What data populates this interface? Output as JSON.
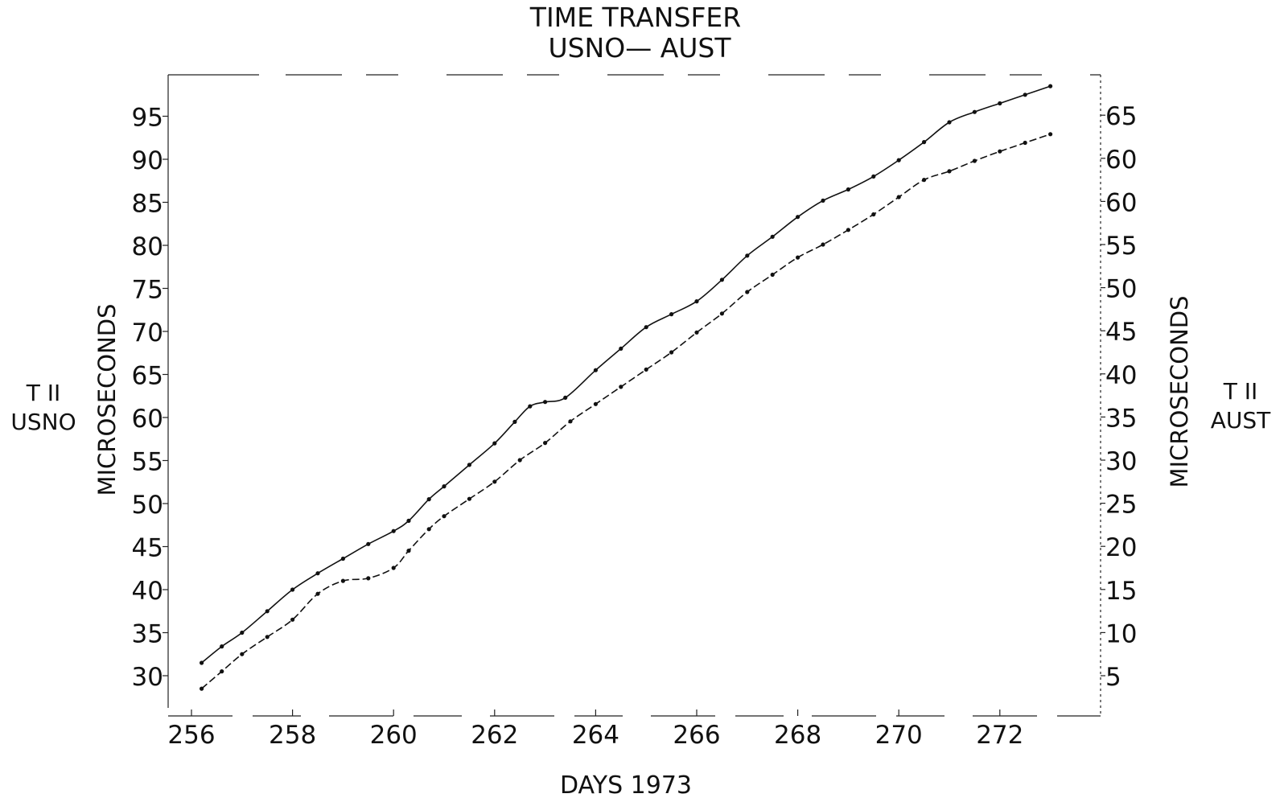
{
  "chart_data": {
    "type": "line",
    "title": "TIME TRANSFER",
    "subtitle": "USNO— AUST",
    "xlabel": "DAYS 1973",
    "left_axis": {
      "label": "MICROSECONDS",
      "side_label": [
        "T II",
        "USNO"
      ],
      "ylim": [
        25,
        100
      ],
      "ticks": [
        "30",
        "35",
        "40",
        "45",
        "50",
        "55",
        "60",
        "65",
        "70",
        "75",
        "80",
        "85",
        "90",
        "95"
      ]
    },
    "right_axis": {
      "label": "MICROSECONDS",
      "side_label": [
        "T II",
        "AUST"
      ],
      "ylim": [
        0,
        70
      ],
      "ticks": [
        "5",
        "10",
        "15",
        "20",
        "25",
        "30",
        "35",
        "40",
        "45",
        "50",
        "55",
        "60",
        "60",
        "65"
      ]
    },
    "xlim": [
      255.7,
      273.4
    ],
    "x_ticks": [
      "256",
      "258",
      "260",
      "262",
      "264",
      "266",
      "268",
      "270",
      "272"
    ],
    "grid": false,
    "series": [
      {
        "axis": "left",
        "style": "solid",
        "x": [
          256.2,
          256.6,
          257.0,
          257.5,
          258.0,
          258.5,
          259.0,
          259.5,
          260.0,
          260.3,
          260.7,
          261.0,
          261.5,
          262.0,
          262.4,
          262.7,
          263.0,
          263.4,
          264.0,
          264.5,
          265.0,
          265.5,
          266.0,
          266.5,
          267.0,
          267.5,
          268.0,
          268.5,
          269.0,
          269.5,
          270.0,
          270.5,
          271.0,
          271.5,
          272.0,
          272.5,
          273.0
        ],
        "y": [
          31.5,
          33.4,
          35.0,
          37.5,
          40.0,
          41.9,
          43.6,
          45.3,
          46.8,
          48.0,
          50.5,
          52.0,
          54.5,
          57.0,
          59.5,
          61.3,
          61.8,
          62.3,
          65.5,
          68.0,
          70.5,
          72.0,
          73.5,
          76.0,
          78.8,
          81.0,
          83.3,
          85.2,
          86.5,
          88.0,
          89.9,
          92.0,
          94.3,
          95.5,
          96.5,
          97.5,
          98.5
        ]
      },
      {
        "axis": "right",
        "style": "dashed",
        "x": [
          256.2,
          256.6,
          257.0,
          257.5,
          258.0,
          258.5,
          259.0,
          259.5,
          260.0,
          260.3,
          260.7,
          261.0,
          261.5,
          262.0,
          262.5,
          263.0,
          263.5,
          264.0,
          264.5,
          265.0,
          265.5,
          266.0,
          266.5,
          267.0,
          267.5,
          268.0,
          268.5,
          269.0,
          269.5,
          270.0,
          270.5,
          271.0,
          271.5,
          272.0,
          272.5,
          273.0
        ],
        "y": [
          3.5,
          5.5,
          7.5,
          9.5,
          11.5,
          14.5,
          16.0,
          16.3,
          17.5,
          19.5,
          22.0,
          23.5,
          25.5,
          27.5,
          30.0,
          32.0,
          34.5,
          36.5,
          38.5,
          40.5,
          42.5,
          44.8,
          47.0,
          49.5,
          51.5,
          53.5,
          55.0,
          56.7,
          58.5,
          60.5,
          62.5,
          63.5,
          64.7,
          65.8,
          66.8,
          67.8
        ]
      }
    ]
  }
}
